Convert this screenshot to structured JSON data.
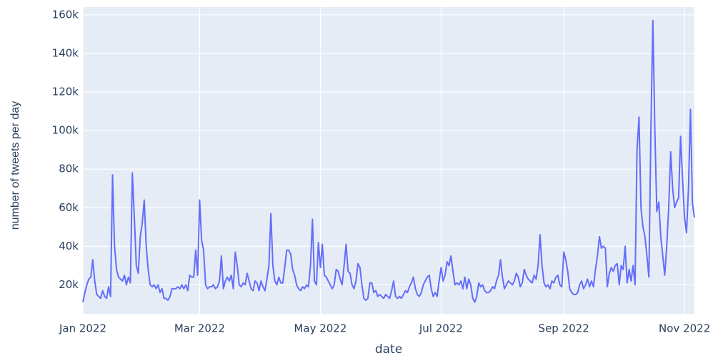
{
  "chart_data": {
    "type": "line",
    "x_label": "date",
    "y_label": "number of tweets per day",
    "color": "#636efa",
    "grid": true,
    "xlim": [
      "2022-01-01",
      "2022-11-06"
    ],
    "xticks": [
      {
        "value": "2022-01-01",
        "label": "Jan 2022"
      },
      {
        "value": "2022-03-01",
        "label": "Mar 2022"
      },
      {
        "value": "2022-05-01",
        "label": "May 2022"
      },
      {
        "value": "2022-07-01",
        "label": "Jul 2022"
      },
      {
        "value": "2022-09-01",
        "label": "Sep 2022"
      },
      {
        "value": "2022-11-01",
        "label": "Nov 2022"
      }
    ],
    "ylim": [
      5000,
      164000
    ],
    "yticks": [
      {
        "value": 20000,
        "label": "20k"
      },
      {
        "value": 40000,
        "label": "40k"
      },
      {
        "value": 60000,
        "label": "60k"
      },
      {
        "value": 80000,
        "label": "80k"
      },
      {
        "value": 100000,
        "label": "100k"
      },
      {
        "value": 120000,
        "label": "120k"
      },
      {
        "value": 140000,
        "label": "140k"
      },
      {
        "value": 160000,
        "label": "160k"
      }
    ],
    "x": [
      "2022-01-01",
      "2022-01-02",
      "2022-01-03",
      "2022-01-04",
      "2022-01-05",
      "2022-01-06",
      "2022-01-07",
      "2022-01-08",
      "2022-01-09",
      "2022-01-10",
      "2022-01-11",
      "2022-01-12",
      "2022-01-13",
      "2022-01-14",
      "2022-01-15",
      "2022-01-16",
      "2022-01-17",
      "2022-01-18",
      "2022-01-19",
      "2022-01-20",
      "2022-01-21",
      "2022-01-22",
      "2022-01-23",
      "2022-01-24",
      "2022-01-25",
      "2022-01-26",
      "2022-01-27",
      "2022-01-28",
      "2022-01-29",
      "2022-01-30",
      "2022-01-31",
      "2022-02-01",
      "2022-02-02",
      "2022-02-03",
      "2022-02-04",
      "2022-02-05",
      "2022-02-06",
      "2022-02-07",
      "2022-02-08",
      "2022-02-09",
      "2022-02-10",
      "2022-02-11",
      "2022-02-12",
      "2022-02-13",
      "2022-02-14",
      "2022-02-15",
      "2022-02-16",
      "2022-02-17",
      "2022-02-18",
      "2022-02-19",
      "2022-02-20",
      "2022-02-21",
      "2022-02-22",
      "2022-02-23",
      "2022-02-24",
      "2022-02-25",
      "2022-02-26",
      "2022-02-27",
      "2022-02-28",
      "2022-03-01",
      "2022-03-02",
      "2022-03-03",
      "2022-03-04",
      "2022-03-05",
      "2022-03-06",
      "2022-03-07",
      "2022-03-08",
      "2022-03-09",
      "2022-03-10",
      "2022-03-11",
      "2022-03-12",
      "2022-03-13",
      "2022-03-14",
      "2022-03-15",
      "2022-03-16",
      "2022-03-17",
      "2022-03-18",
      "2022-03-19",
      "2022-03-20",
      "2022-03-21",
      "2022-03-22",
      "2022-03-23",
      "2022-03-24",
      "2022-03-25",
      "2022-03-26",
      "2022-03-27",
      "2022-03-28",
      "2022-03-29",
      "2022-03-30",
      "2022-03-31",
      "2022-04-01",
      "2022-04-02",
      "2022-04-03",
      "2022-04-04",
      "2022-04-05",
      "2022-04-06",
      "2022-04-07",
      "2022-04-08",
      "2022-04-09",
      "2022-04-10",
      "2022-04-11",
      "2022-04-12",
      "2022-04-13",
      "2022-04-14",
      "2022-04-15",
      "2022-04-16",
      "2022-04-17",
      "2022-04-18",
      "2022-04-19",
      "2022-04-20",
      "2022-04-21",
      "2022-04-22",
      "2022-04-23",
      "2022-04-24",
      "2022-04-25",
      "2022-04-26",
      "2022-04-27",
      "2022-04-28",
      "2022-04-29",
      "2022-04-30",
      "2022-05-01",
      "2022-05-02",
      "2022-05-03",
      "2022-05-04",
      "2022-05-05",
      "2022-05-06",
      "2022-05-07",
      "2022-05-08",
      "2022-05-09",
      "2022-05-10",
      "2022-05-11",
      "2022-05-12",
      "2022-05-13",
      "2022-05-14",
      "2022-05-15",
      "2022-05-16",
      "2022-05-17",
      "2022-05-18",
      "2022-05-19",
      "2022-05-20",
      "2022-05-21",
      "2022-05-22",
      "2022-05-23",
      "2022-05-24",
      "2022-05-25",
      "2022-05-26",
      "2022-05-27",
      "2022-05-28",
      "2022-05-29",
      "2022-05-30",
      "2022-05-31",
      "2022-06-01",
      "2022-06-02",
      "2022-06-03",
      "2022-06-04",
      "2022-06-05",
      "2022-06-06",
      "2022-06-07",
      "2022-06-08",
      "2022-06-09",
      "2022-06-10",
      "2022-06-11",
      "2022-06-12",
      "2022-06-13",
      "2022-06-14",
      "2022-06-15",
      "2022-06-16",
      "2022-06-17",
      "2022-06-18",
      "2022-06-19",
      "2022-06-20",
      "2022-06-21",
      "2022-06-22",
      "2022-06-23",
      "2022-06-24",
      "2022-06-25",
      "2022-06-26",
      "2022-06-27",
      "2022-06-28",
      "2022-06-29",
      "2022-06-30",
      "2022-07-01",
      "2022-07-02",
      "2022-07-03",
      "2022-07-04",
      "2022-07-05",
      "2022-07-06",
      "2022-07-07",
      "2022-07-08",
      "2022-07-09",
      "2022-07-10",
      "2022-07-11",
      "2022-07-12",
      "2022-07-13",
      "2022-07-14",
      "2022-07-15",
      "2022-07-16",
      "2022-07-17",
      "2022-07-18",
      "2022-07-19",
      "2022-07-20",
      "2022-07-21",
      "2022-07-22",
      "2022-07-23",
      "2022-07-24",
      "2022-07-25",
      "2022-07-26",
      "2022-07-27",
      "2022-07-28",
      "2022-07-29",
      "2022-07-30",
      "2022-07-31",
      "2022-08-01",
      "2022-08-02",
      "2022-08-03",
      "2022-08-04",
      "2022-08-05",
      "2022-08-06",
      "2022-08-07",
      "2022-08-08",
      "2022-08-09",
      "2022-08-10",
      "2022-08-11",
      "2022-08-12",
      "2022-08-13",
      "2022-08-14",
      "2022-08-15",
      "2022-08-16",
      "2022-08-17",
      "2022-08-18",
      "2022-08-19",
      "2022-08-20",
      "2022-08-21",
      "2022-08-22",
      "2022-08-23",
      "2022-08-24",
      "2022-08-25",
      "2022-08-26",
      "2022-08-27",
      "2022-08-28",
      "2022-08-29",
      "2022-08-30",
      "2022-08-31",
      "2022-09-01",
      "2022-09-02",
      "2022-09-03",
      "2022-09-04",
      "2022-09-05",
      "2022-09-06",
      "2022-09-07",
      "2022-09-08",
      "2022-09-09",
      "2022-09-10",
      "2022-09-11",
      "2022-09-12",
      "2022-09-13",
      "2022-09-14",
      "2022-09-15",
      "2022-09-16",
      "2022-09-17",
      "2022-09-18",
      "2022-09-19",
      "2022-09-20",
      "2022-09-21",
      "2022-09-22",
      "2022-09-23",
      "2022-09-24",
      "2022-09-25",
      "2022-09-26",
      "2022-09-27",
      "2022-09-28",
      "2022-09-29",
      "2022-09-30",
      "2022-10-01",
      "2022-10-02",
      "2022-10-03",
      "2022-10-04",
      "2022-10-05",
      "2022-10-06",
      "2022-10-07",
      "2022-10-08",
      "2022-10-09",
      "2022-10-10",
      "2022-10-11",
      "2022-10-12",
      "2022-10-13",
      "2022-10-14",
      "2022-10-15",
      "2022-10-16",
      "2022-10-17",
      "2022-10-18",
      "2022-10-19",
      "2022-10-20",
      "2022-10-21",
      "2022-10-22",
      "2022-10-23",
      "2022-10-24",
      "2022-10-25",
      "2022-10-26",
      "2022-10-27",
      "2022-10-28",
      "2022-10-29",
      "2022-10-30",
      "2022-10-31",
      "2022-11-01",
      "2022-11-02",
      "2022-11-03",
      "2022-11-04",
      "2022-11-05",
      "2022-11-06"
    ],
    "values": [
      11000,
      16000,
      20000,
      23000,
      24000,
      33000,
      22000,
      15000,
      14000,
      13000,
      17000,
      14000,
      13000,
      19000,
      14000,
      77000,
      40000,
      28000,
      24000,
      23000,
      22000,
      25000,
      20000,
      24000,
      21000,
      78000,
      55000,
      30000,
      26000,
      45000,
      52000,
      64000,
      40000,
      28000,
      20000,
      19000,
      20000,
      18000,
      20000,
      16000,
      18000,
      13000,
      13000,
      12000,
      14000,
      18000,
      18000,
      18000,
      19000,
      18000,
      20000,
      18000,
      20000,
      17000,
      25000,
      24000,
      24000,
      38000,
      25000,
      64000,
      43000,
      38000,
      20000,
      18000,
      19000,
      19000,
      20000,
      18000,
      19000,
      22000,
      35000,
      18000,
      22000,
      24000,
      22000,
      25000,
      18000,
      37000,
      30000,
      20000,
      19000,
      21000,
      20000,
      26000,
      22000,
      18000,
      17000,
      22000,
      21000,
      17000,
      22000,
      19000,
      17000,
      23000,
      30000,
      57000,
      30000,
      22000,
      20000,
      24000,
      21000,
      21000,
      29000,
      38000,
      38000,
      36000,
      28000,
      25000,
      20000,
      18000,
      17000,
      19000,
      18000,
      20000,
      19000,
      30000,
      54000,
      22000,
      20000,
      42000,
      29000,
      41000,
      25000,
      24000,
      22000,
      20000,
      18000,
      20000,
      28000,
      27000,
      23000,
      20000,
      30000,
      41000,
      27000,
      26000,
      20000,
      18000,
      22000,
      31000,
      29000,
      20000,
      13000,
      12000,
      13000,
      21000,
      21000,
      16000,
      17000,
      14000,
      15000,
      14000,
      13000,
      15000,
      14000,
      13000,
      17000,
      22000,
      14000,
      13000,
      14000,
      13000,
      15000,
      17000,
      16000,
      19000,
      21000,
      24000,
      18000,
      15000,
      14000,
      16000,
      20000,
      22000,
      24000,
      25000,
      18000,
      14000,
      16000,
      14000,
      22000,
      29000,
      22000,
      25000,
      32000,
      30000,
      35000,
      27000,
      20000,
      21000,
      20000,
      22000,
      18000,
      24000,
      18000,
      23000,
      20000,
      13000,
      11000,
      14000,
      21000,
      19000,
      20000,
      17000,
      16000,
      16000,
      17000,
      19000,
      18000,
      22000,
      25000,
      33000,
      24000,
      18000,
      20000,
      22000,
      21000,
      20000,
      22000,
      26000,
      24000,
      19000,
      21000,
      28000,
      25000,
      23000,
      22000,
      21000,
      25000,
      23000,
      30000,
      46000,
      30000,
      21000,
      19000,
      20000,
      18000,
      22000,
      21000,
      24000,
      25000,
      20000,
      19000,
      37000,
      33000,
      27000,
      18000,
      16000,
      15000,
      15000,
      16000,
      20000,
      22000,
      18000,
      20000,
      23000,
      19000,
      22000,
      19000,
      28000,
      35000,
      45000,
      39000,
      40000,
      39000,
      19000,
      26000,
      29000,
      27000,
      30000,
      31000,
      20000,
      30000,
      28000,
      40000,
      21000,
      28000,
      22000,
      30000,
      20000,
      90000,
      107000,
      60000,
      50000,
      45000,
      35000,
      24000,
      100000,
      157000,
      100000,
      58000,
      63000,
      45000,
      35000,
      25000,
      40000,
      60000,
      89000,
      70000,
      60000,
      63000,
      65000,
      97000,
      75000,
      55000,
      47000,
      70000,
      111000,
      62000,
      55000
    ]
  }
}
